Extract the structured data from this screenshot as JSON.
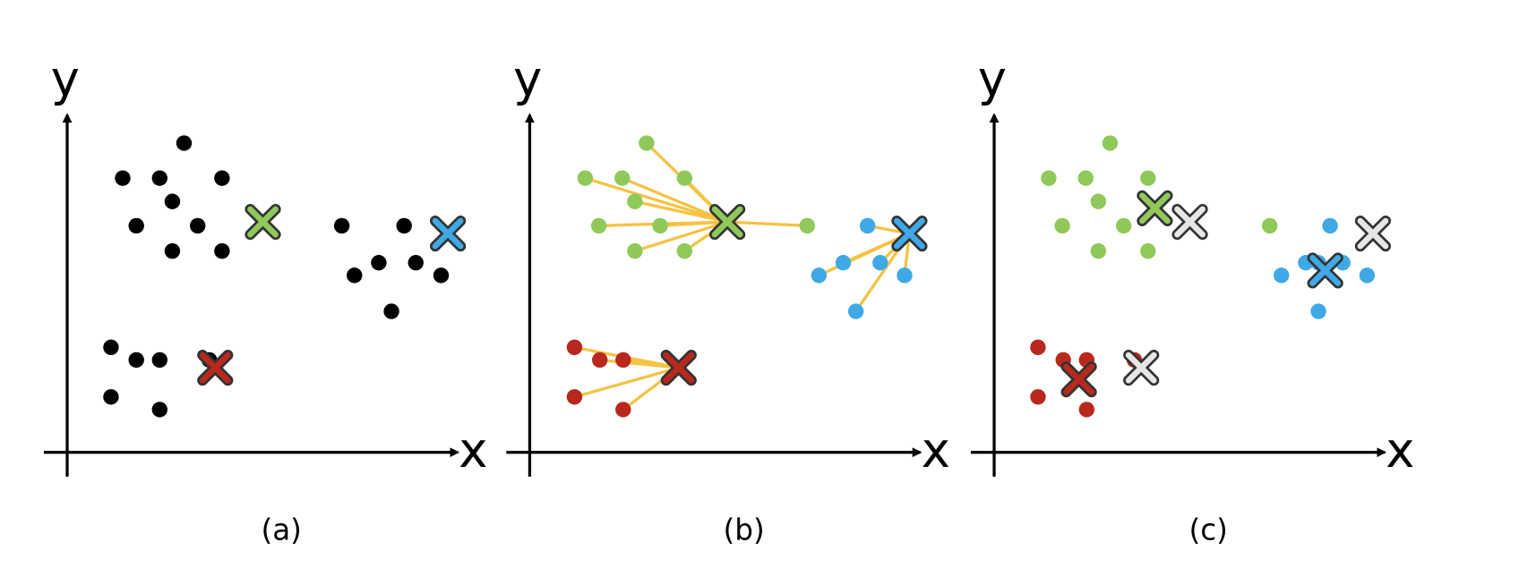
{
  "panels": [
    {
      "y_label": "y",
      "x_label": "x",
      "caption": "(a)"
    },
    {
      "y_label": "y",
      "x_label": "x",
      "caption": "(b)"
    },
    {
      "y_label": "y",
      "x_label": "x",
      "caption": "(c)"
    }
  ]
}
